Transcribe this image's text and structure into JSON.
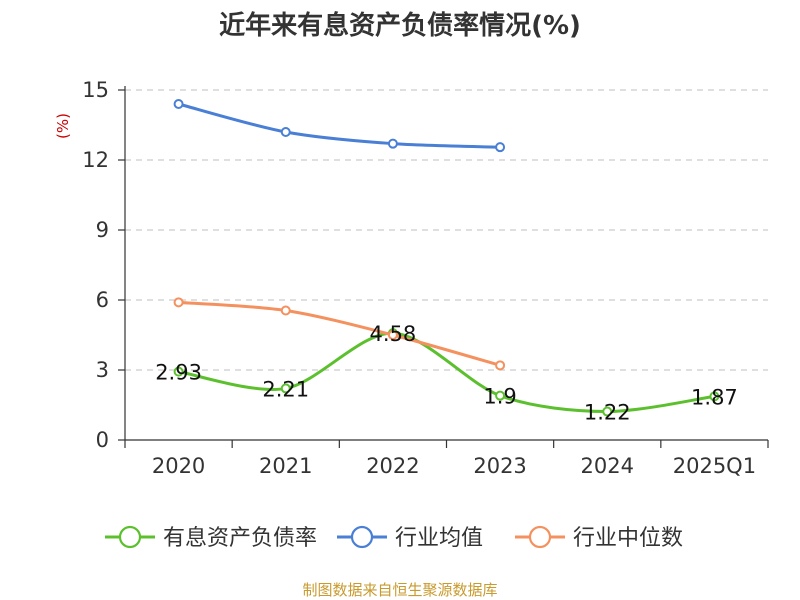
{
  "chart_data": {
    "type": "line",
    "title": "近年来有息资产负债率情况(%)",
    "ylabel": "(%)",
    "xlabel": "",
    "categories": [
      "2020",
      "2021",
      "2022",
      "2023",
      "2024",
      "2025Q1"
    ],
    "ylim": [
      0,
      15
    ],
    "yticks": [
      0,
      3,
      6,
      9,
      12,
      15
    ],
    "grid": true,
    "legend_position": "bottom",
    "series": [
      {
        "name": "有息资产负债率",
        "color": "#5cc02e",
        "values": [
          2.93,
          2.21,
          4.58,
          1.9,
          1.22,
          1.87
        ],
        "labels": [
          "2.93",
          "2.21",
          "4.58",
          "1.9",
          "1.22",
          "1.87"
        ]
      },
      {
        "name": "行业均值",
        "color": "#4a7fd6",
        "values": [
          14.4,
          13.2,
          12.7,
          12.55,
          null,
          null
        ]
      },
      {
        "name": "行业中位数",
        "color": "#f4915f",
        "values": [
          5.9,
          5.55,
          4.5,
          3.2,
          null,
          null
        ]
      }
    ]
  },
  "footer": {
    "source": "制图数据来自恒生聚源数据库"
  }
}
